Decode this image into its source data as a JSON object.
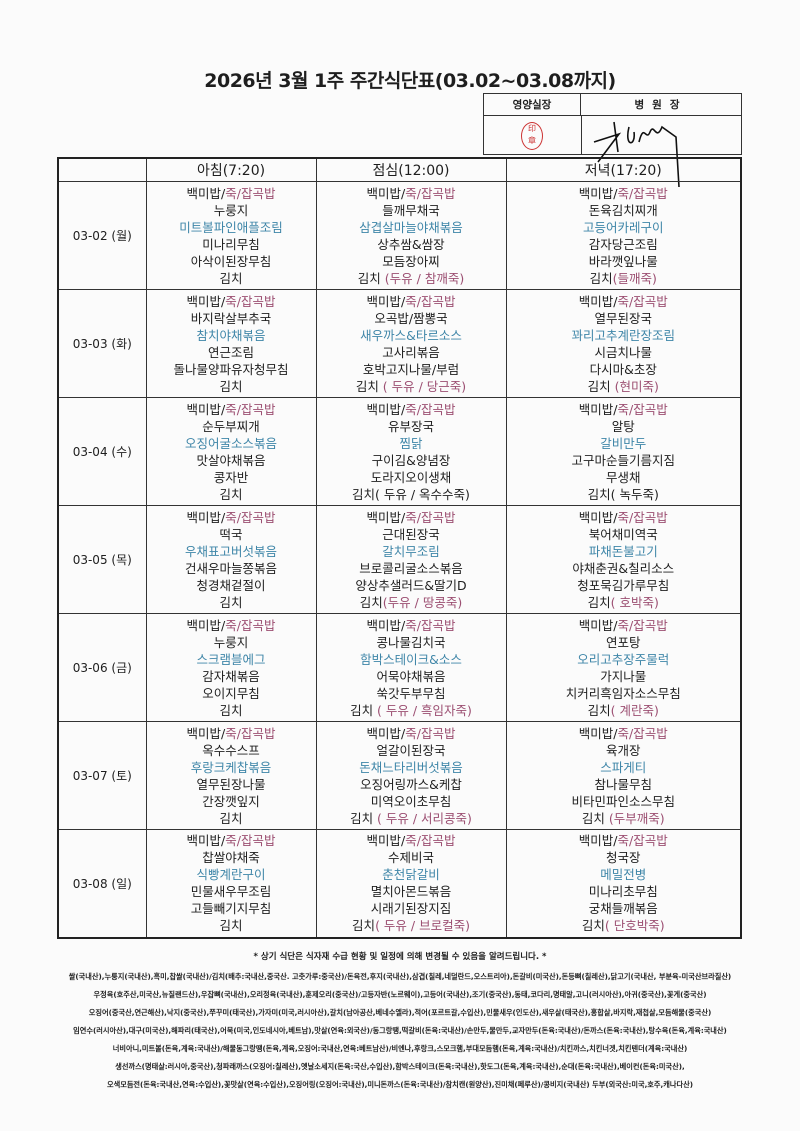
{
  "title": "2026년 3월 1주 주간식단표(03.02~03.08까지)",
  "approval": {
    "nutrition_head": "영양실장",
    "director": "병원장"
  },
  "colors": {
    "highlight_pink": "#9c4f72",
    "highlight_blue": "#3f86a8",
    "seal_red": "#cc3333"
  },
  "headers": {
    "breakfast": "아침(7:20)",
    "lunch": "점심(12:00)",
    "dinner": "저녁(17:20)"
  },
  "days": [
    {
      "date": "03-02 (월)",
      "breakfast": [
        [
          [
            "백미밥/",
            "k"
          ],
          [
            "죽/잡곡밥",
            "p"
          ]
        ],
        [
          [
            "누룽지",
            "k"
          ]
        ],
        [
          [
            "미트볼파인애플조림",
            "b"
          ]
        ],
        [
          [
            "미나리무침",
            "k"
          ]
        ],
        [
          [
            "아삭이된장무침",
            "k"
          ]
        ],
        [
          [
            "김치",
            "k"
          ]
        ]
      ],
      "lunch": [
        [
          [
            "백미밥/",
            "k"
          ],
          [
            "죽/잡곡밥",
            "p"
          ]
        ],
        [
          [
            "들깨무채국",
            "k"
          ]
        ],
        [
          [
            "삼겹살마늘야채볶음",
            "b"
          ]
        ],
        [
          [
            "상추쌈&쌈장",
            "k"
          ]
        ],
        [
          [
            "모듬장아찌",
            "k"
          ]
        ],
        [
          [
            "김치 ",
            "k"
          ],
          [
            "(두유 / 참깨죽)",
            "p"
          ]
        ]
      ],
      "dinner": [
        [
          [
            "백미밥/",
            "k"
          ],
          [
            "죽/잡곡밥",
            "p"
          ]
        ],
        [
          [
            "돈육김치찌개",
            "k"
          ]
        ],
        [
          [
            "고등어카레구이",
            "b"
          ]
        ],
        [
          [
            "감자당근조림",
            "k"
          ]
        ],
        [
          [
            "바라깻잎나물",
            "k"
          ]
        ],
        [
          [
            "김치",
            "k"
          ],
          [
            "(들깨죽)",
            "p"
          ]
        ]
      ]
    },
    {
      "date": "03-03 (화)",
      "breakfast": [
        [
          [
            "백미밥/",
            "k"
          ],
          [
            "죽/잡곡밥",
            "p"
          ]
        ],
        [
          [
            "바지락살부추국",
            "k"
          ]
        ],
        [
          [
            "참치야채볶음",
            "b"
          ]
        ],
        [
          [
            "연근조림",
            "k"
          ]
        ],
        [
          [
            "돌나물양파유자청무침",
            "k"
          ]
        ],
        [
          [
            "김치",
            "k"
          ]
        ]
      ],
      "lunch": [
        [
          [
            "백미밥/",
            "k"
          ],
          [
            "죽/잡곡밥",
            "p"
          ]
        ],
        [
          [
            "오곡밥/짬뽕국",
            "k"
          ]
        ],
        [
          [
            "새우까스&타르소스",
            "b"
          ]
        ],
        [
          [
            "고사리볶음",
            "k"
          ]
        ],
        [
          [
            "호박고지나물/부럼",
            "k"
          ]
        ],
        [
          [
            "김치 ",
            "k"
          ],
          [
            "( 두유 / 당근죽)",
            "p"
          ]
        ]
      ],
      "dinner": [
        [
          [
            "백미밥/",
            "k"
          ],
          [
            "죽/잡곡밥",
            "p"
          ]
        ],
        [
          [
            "열무된장국",
            "k"
          ]
        ],
        [
          [
            "꽈리고추계란장조림",
            "b"
          ]
        ],
        [
          [
            "시금치나물",
            "k"
          ]
        ],
        [
          [
            "다시마&초장",
            "k"
          ]
        ],
        [
          [
            "김치 ",
            "k"
          ],
          [
            "(현미죽)",
            "p"
          ]
        ]
      ]
    },
    {
      "date": "03-04 (수)",
      "breakfast": [
        [
          [
            "백미밥/",
            "k"
          ],
          [
            "죽/잡곡밥",
            "p"
          ]
        ],
        [
          [
            "순두부찌개",
            "k"
          ]
        ],
        [
          [
            "오징어굴소스볶음",
            "b"
          ]
        ],
        [
          [
            "맛살야채볶음",
            "k"
          ]
        ],
        [
          [
            "콩자반",
            "k"
          ]
        ],
        [
          [
            "김치",
            "k"
          ]
        ]
      ],
      "lunch": [
        [
          [
            "백미밥/",
            "k"
          ],
          [
            "죽/잡곡밥",
            "p"
          ]
        ],
        [
          [
            "유부장국",
            "k"
          ]
        ],
        [
          [
            "찜닭",
            "b"
          ]
        ],
        [
          [
            "구이김&양념장",
            "k"
          ]
        ],
        [
          [
            "도라지오이생채",
            "k"
          ]
        ],
        [
          [
            "김치( 두유 / 옥수수죽)",
            "k"
          ]
        ]
      ],
      "dinner": [
        [
          [
            "백미밥/",
            "k"
          ],
          [
            "죽/잡곡밥",
            "p"
          ]
        ],
        [
          [
            "알탕",
            "k"
          ]
        ],
        [
          [
            "갈비만두",
            "b"
          ]
        ],
        [
          [
            "고구마순들기름지짐",
            "k"
          ]
        ],
        [
          [
            "무생채",
            "k"
          ]
        ],
        [
          [
            "김치( 녹두죽)",
            "k"
          ]
        ]
      ]
    },
    {
      "date": "03-05 (목)",
      "breakfast": [
        [
          [
            "백미밥/",
            "k"
          ],
          [
            "죽/잡곡밥",
            "p"
          ]
        ],
        [
          [
            "떡국",
            "k"
          ]
        ],
        [
          [
            "우채표고버섯볶음",
            "b"
          ]
        ],
        [
          [
            "건새우마늘쫑볶음",
            "k"
          ]
        ],
        [
          [
            "청경채겉절이",
            "k"
          ]
        ],
        [
          [
            "김치",
            "k"
          ]
        ]
      ],
      "lunch": [
        [
          [
            "백미밥/",
            "k"
          ],
          [
            "죽/잡곡밥",
            "p"
          ]
        ],
        [
          [
            "근대된장국",
            "k"
          ]
        ],
        [
          [
            "갈치무조림",
            "b"
          ]
        ],
        [
          [
            "브로콜리굴소스볶음",
            "k"
          ]
        ],
        [
          [
            "양상추샐러드&딸기D",
            "k"
          ]
        ],
        [
          [
            "김치",
            "k"
          ],
          [
            "(두유 / 땅콩죽)",
            "p"
          ]
        ]
      ],
      "dinner": [
        [
          [
            "백미밥/",
            "k"
          ],
          [
            "죽/잡곡밥",
            "p"
          ]
        ],
        [
          [
            "북어채미역국",
            "k"
          ]
        ],
        [
          [
            "파채돈불고기",
            "b"
          ]
        ],
        [
          [
            "야채춘권&칠리소스",
            "k"
          ]
        ],
        [
          [
            "청포묵김가루무침",
            "k"
          ]
        ],
        [
          [
            "김치",
            "k"
          ],
          [
            "( 호박죽)",
            "p"
          ]
        ]
      ]
    },
    {
      "date": "03-06 (금)",
      "breakfast": [
        [
          [
            "백미밥/",
            "k"
          ],
          [
            "죽/잡곡밥",
            "p"
          ]
        ],
        [
          [
            "누룽지",
            "k"
          ]
        ],
        [
          [
            "스크램블에그",
            "b"
          ]
        ],
        [
          [
            "감자채볶음",
            "k"
          ]
        ],
        [
          [
            "오이지무침",
            "k"
          ]
        ],
        [
          [
            "김치",
            "k"
          ]
        ]
      ],
      "lunch": [
        [
          [
            "백미밥/",
            "k"
          ],
          [
            "죽/잡곡밥",
            "p"
          ]
        ],
        [
          [
            "콩나물김치국",
            "k"
          ]
        ],
        [
          [
            "함박스테이크&소스",
            "b"
          ]
        ],
        [
          [
            "어묵야채볶음",
            "k"
          ]
        ],
        [
          [
            "쑥갓두부무침",
            "k"
          ]
        ],
        [
          [
            "김치 ",
            "k"
          ],
          [
            "( 두유 / 흑임자죽)",
            "p"
          ]
        ]
      ],
      "dinner": [
        [
          [
            "백미밥/",
            "k"
          ],
          [
            "죽/잡곡밥",
            "p"
          ]
        ],
        [
          [
            "연포탕",
            "k"
          ]
        ],
        [
          [
            "오리고추장주물럭",
            "b"
          ]
        ],
        [
          [
            "가지나물",
            "k"
          ]
        ],
        [
          [
            "치커리흑임자소스무침",
            "k"
          ]
        ],
        [
          [
            "김치",
            "k"
          ],
          [
            "( 계란죽)",
            "p"
          ]
        ]
      ]
    },
    {
      "date": "03-07 (토)",
      "breakfast": [
        [
          [
            "백미밥/",
            "k"
          ],
          [
            "죽/잡곡밥",
            "p"
          ]
        ],
        [
          [
            "옥수수스프",
            "k"
          ]
        ],
        [
          [
            "후랑크케찹볶음",
            "b"
          ]
        ],
        [
          [
            "열무된장나물",
            "k"
          ]
        ],
        [
          [
            "간장깻잎지",
            "k"
          ]
        ],
        [
          [
            "김치",
            "k"
          ]
        ]
      ],
      "lunch": [
        [
          [
            "백미밥/",
            "k"
          ],
          [
            "죽/잡곡밥",
            "p"
          ]
        ],
        [
          [
            "얼갈이된장국",
            "k"
          ]
        ],
        [
          [
            "돈채느타리버섯볶음",
            "b"
          ]
        ],
        [
          [
            "오징어링까스&케찹",
            "k"
          ]
        ],
        [
          [
            "미역오이초무침",
            "k"
          ]
        ],
        [
          [
            "김치 ",
            "k"
          ],
          [
            "( 두유 / 서리콩죽)",
            "p"
          ]
        ]
      ],
      "dinner": [
        [
          [
            "백미밥/",
            "k"
          ],
          [
            "죽/잡곡밥",
            "p"
          ]
        ],
        [
          [
            "육개장",
            "k"
          ]
        ],
        [
          [
            "스파게티",
            "b"
          ]
        ],
        [
          [
            "참나물무침",
            "k"
          ]
        ],
        [
          [
            "비타민파인소스무침",
            "k"
          ]
        ],
        [
          [
            "김치 ",
            "k"
          ],
          [
            "(두부깨죽)",
            "p"
          ]
        ]
      ]
    },
    {
      "date": "03-08 (일)",
      "breakfast": [
        [
          [
            "백미밥/",
            "k"
          ],
          [
            "죽/잡곡밥",
            "p"
          ]
        ],
        [
          [
            "찹쌀야채죽",
            "k"
          ]
        ],
        [
          [
            "식빵계란구이",
            "b"
          ]
        ],
        [
          [
            "민물새우무조림",
            "k"
          ]
        ],
        [
          [
            "고들빼기지무침",
            "k"
          ]
        ],
        [
          [
            "김치",
            "k"
          ]
        ]
      ],
      "lunch": [
        [
          [
            "백미밥/",
            "k"
          ],
          [
            "죽/잡곡밥",
            "p"
          ]
        ],
        [
          [
            "수제비국",
            "k"
          ]
        ],
        [
          [
            "춘천닭갈비",
            "b"
          ]
        ],
        [
          [
            "멸치아몬드볶음",
            "k"
          ]
        ],
        [
          [
            "시래기된장지짐",
            "k"
          ]
        ],
        [
          [
            "김치",
            "k"
          ],
          [
            "( 두유 / 브로컬죽)",
            "p"
          ]
        ]
      ],
      "dinner": [
        [
          [
            "백미밥/",
            "k"
          ],
          [
            "죽/잡곡밥",
            "p"
          ]
        ],
        [
          [
            "청국장",
            "k"
          ]
        ],
        [
          [
            "메밀전병",
            "b"
          ]
        ],
        [
          [
            "미나리초무침",
            "k"
          ]
        ],
        [
          [
            "궁채들깨볶음",
            "k"
          ]
        ],
        [
          [
            "김치",
            "k"
          ],
          [
            "( 단호박죽)",
            "p"
          ]
        ]
      ]
    }
  ],
  "notice": "* 상기 식단은 식자재 수급 현황 및 일정에 의해 변경될 수 있음을 알려드립니다. *",
  "origin_lines": [
    "쌀(국내산),누룽지(국내산),흑미,찹쌀(국내산)/김치(배추:국내산,중국산. 고춧가루:중국산)/돈육전,후지(국내산),삼겹(칠레,네덜란드,오스트리아),돈갈비(미국산),돈등뼈(칠레산),닭고기(국내산, 부분육-미국산브라질산)",
    "우정육(호주산,미국산,뉴질랜드산),우잡뼈(국내산),오리정육(국내산),훈제오리(중국산)/고등자반(노르웨이),고등어(국내산),조기(중국산),동태,코다리,명태알,고니(러시아산),아귀(중국산),꽃게(중국산)",
    "오징어(중국산,연근해산),낙지(중국산),쭈꾸미(태국산),가자미(미국,러시아산),갈치(남아공산,베네수엘라),적어(포르트갈,수입산),민물새우(인도산),새우살(태국산),홍합살,바지락,재첩살,모듬해물(중국산)",
    "임연수(러시아산),대구(미국산),해파리(태국산),어묵(미국,인도네시아,베트남),맛살(연육:외국산)/동그랑땡,떡갈비(돈육:국내산)/손만두,물만두,교자만두(돈육:국내산)/돈까스(돈육:국내산),탕수육(돈육,계육:국내산)",
    "너비아니,미트볼(돈육,계육:국내산)/해물동그랑땡(돈육,계육,오징어:국내산,연육:베트남산)/비엔나,후랑크,스모크햄,부대모듬햄(돈육,계육:국내산)/치킨까스,치킨너겟,치킨텐더(계육:국내산)",
    "생선까스(명태살:러시아,중국산),청파래까스(오징어:칠레산),옛날소세지(돈육:국산,수입산),함박스테이크(돈육:국내산),핫도그(돈육,계육:국내산),순대(돈육:국내산),베이컨(돈육:미국산),",
    "오색모듬전(돈육:국내산,연육:수입산),꽃맛살(연육:수입산),오징어링(오징어:국내산),미니돈까스(돈육:국내산)/참치캔(원양산),진미채(페루산)/콩비지(국내산) 두부(외국산:미국,호주,캐나다산)"
  ]
}
